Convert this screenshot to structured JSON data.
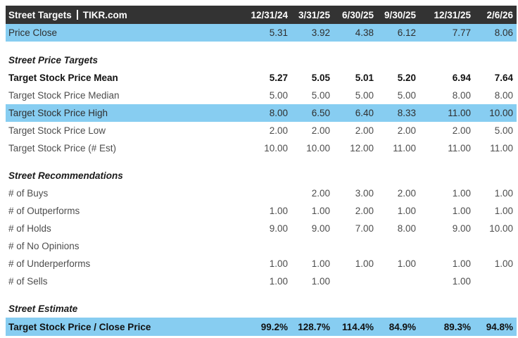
{
  "colors": {
    "header_bg": "#333333",
    "highlight": "#87cdf1"
  },
  "header": {
    "title": "Street Targets",
    "separator": "|",
    "source": "TIKR.com",
    "columns": [
      "12/31/24",
      "3/31/25",
      "6/30/25",
      "9/30/25",
      "12/31/25",
      "2/6/26"
    ]
  },
  "rows": [
    {
      "type": "highlight",
      "label": "Price Close",
      "values": [
        "5.31",
        "3.92",
        "4.38",
        "6.12",
        "7.77",
        "8.06"
      ]
    },
    {
      "type": "spacer"
    },
    {
      "type": "section",
      "label": "Street Price Targets",
      "values": [
        "",
        "",
        "",
        "",
        "",
        ""
      ]
    },
    {
      "type": "bold",
      "label": "Target Stock Price Mean",
      "values": [
        "5.27",
        "5.05",
        "5.01",
        "5.20",
        "6.94",
        "7.64"
      ]
    },
    {
      "type": "normal",
      "label": "Target Stock Price Median",
      "values": [
        "5.00",
        "5.00",
        "5.00",
        "5.00",
        "8.00",
        "8.00"
      ]
    },
    {
      "type": "highlight",
      "label": "Target Stock Price High",
      "values": [
        "8.00",
        "6.50",
        "6.40",
        "8.33",
        "11.00",
        "10.00"
      ]
    },
    {
      "type": "normal",
      "label": "Target Stock Price Low",
      "values": [
        "2.00",
        "2.00",
        "2.00",
        "2.00",
        "2.00",
        "5.00"
      ]
    },
    {
      "type": "normal",
      "label": "Target Stock Price (# Est)",
      "values": [
        "10.00",
        "10.00",
        "12.00",
        "11.00",
        "11.00",
        "11.00"
      ]
    },
    {
      "type": "spacer"
    },
    {
      "type": "section",
      "label": "Street Recommendations",
      "values": [
        "",
        "",
        "",
        "",
        "",
        ""
      ]
    },
    {
      "type": "normal",
      "label": "# of Buys",
      "values": [
        "",
        "2.00",
        "3.00",
        "2.00",
        "1.00",
        "1.00"
      ]
    },
    {
      "type": "normal",
      "label": "# of Outperforms",
      "values": [
        "1.00",
        "1.00",
        "2.00",
        "1.00",
        "1.00",
        "1.00"
      ]
    },
    {
      "type": "normal",
      "label": "# of Holds",
      "values": [
        "9.00",
        "9.00",
        "7.00",
        "8.00",
        "9.00",
        "10.00"
      ]
    },
    {
      "type": "normal",
      "label": "# of No Opinions",
      "values": [
        "",
        "",
        "",
        "",
        "",
        ""
      ]
    },
    {
      "type": "normal",
      "label": "# of Underperforms",
      "values": [
        "1.00",
        "1.00",
        "1.00",
        "1.00",
        "1.00",
        "1.00"
      ]
    },
    {
      "type": "normal",
      "label": "# of Sells",
      "values": [
        "1.00",
        "1.00",
        "",
        "",
        "1.00",
        ""
      ]
    },
    {
      "type": "spacer"
    },
    {
      "type": "section",
      "label": "Street Estimate",
      "values": [
        "",
        "",
        "",
        "",
        "",
        ""
      ]
    },
    {
      "type": "highlight-bold",
      "label": "Target Stock Price / Close Price",
      "values": [
        "99.2%",
        "128.7%",
        "114.4%",
        "84.9%",
        "89.3%",
        "94.8%"
      ]
    }
  ]
}
